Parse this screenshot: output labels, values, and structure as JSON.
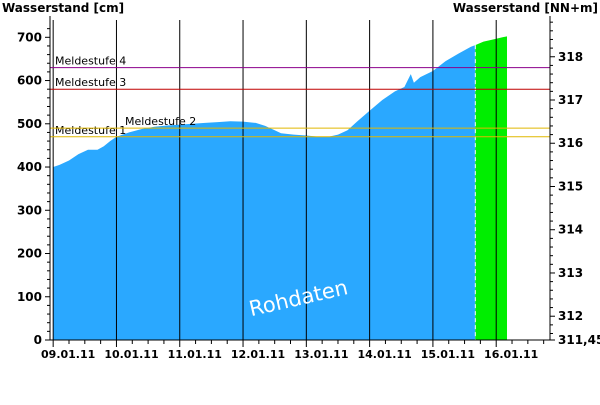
{
  "chart_data": {
    "type": "area",
    "ylabel_left": "Wasserstand [cm]",
    "ylabel_right": "Wasserstand [NN+m]",
    "watermark": "Rohdaten",
    "ylim": [
      0,
      740
    ],
    "yticks": [
      0,
      100,
      200,
      300,
      400,
      500,
      600,
      700
    ],
    "right_ticks": [
      {
        "label": "311,45",
        "cm": 0
      },
      {
        "label": "312",
        "cm": 55
      },
      {
        "label": "313",
        "cm": 155
      },
      {
        "label": "314",
        "cm": 255
      },
      {
        "label": "315",
        "cm": 355
      },
      {
        "label": "316",
        "cm": 455
      },
      {
        "label": "317",
        "cm": 555
      },
      {
        "label": "318",
        "cm": 655
      }
    ],
    "xlim_days": [
      -0.05,
      7.85
    ],
    "x_ticks": [
      {
        "label": "09.01.11",
        "day": 0
      },
      {
        "label": "10.01.11",
        "day": 1
      },
      {
        "label": "11.01.11",
        "day": 2
      },
      {
        "label": "12.01.11",
        "day": 3
      },
      {
        "label": "13.01.11",
        "day": 4
      },
      {
        "label": "14.01.11",
        "day": 5
      },
      {
        "label": "15.01.11",
        "day": 6
      },
      {
        "label": "16.01.11",
        "day": 7
      }
    ],
    "thresholds": [
      {
        "name": "Meldestufe 1",
        "value": 470,
        "color": "#e0b800"
      },
      {
        "name": "Meldestufe 2",
        "value": 490,
        "color": "#e0b800"
      },
      {
        "name": "Meldestufe 3",
        "value": 580,
        "color": "#c00000"
      },
      {
        "name": "Meldestufe 4",
        "value": 630,
        "color": "#8b008b"
      }
    ],
    "series": [
      {
        "color": "#2aa8ff",
        "points": [
          [
            0,
            400
          ],
          [
            0.1,
            405
          ],
          [
            0.25,
            415
          ],
          [
            0.4,
            430
          ],
          [
            0.55,
            440
          ],
          [
            0.7,
            440
          ],
          [
            0.8,
            448
          ],
          [
            0.9,
            460
          ],
          [
            1.0,
            470
          ],
          [
            1.2,
            480
          ],
          [
            1.4,
            488
          ],
          [
            1.6,
            493
          ],
          [
            1.8,
            496
          ],
          [
            2.0,
            498
          ],
          [
            2.2,
            500
          ],
          [
            2.4,
            502
          ],
          [
            2.6,
            504
          ],
          [
            2.8,
            506
          ],
          [
            3.0,
            505
          ],
          [
            3.2,
            502
          ],
          [
            3.35,
            495
          ],
          [
            3.5,
            485
          ],
          [
            3.6,
            478
          ],
          [
            3.8,
            475
          ],
          [
            4.0,
            473
          ],
          [
            4.2,
            470
          ],
          [
            4.35,
            470
          ],
          [
            4.5,
            475
          ],
          [
            4.65,
            485
          ],
          [
            4.8,
            505
          ],
          [
            5.0,
            530
          ],
          [
            5.2,
            555
          ],
          [
            5.4,
            575
          ],
          [
            5.55,
            585
          ],
          [
            5.6,
            600
          ],
          [
            5.65,
            615
          ],
          [
            5.7,
            595
          ],
          [
            5.8,
            608
          ],
          [
            6.0,
            622
          ],
          [
            6.2,
            645
          ],
          [
            6.4,
            662
          ],
          [
            6.6,
            678
          ],
          [
            6.67,
            682
          ]
        ]
      },
      {
        "color": "#00ee00",
        "points": [
          [
            6.67,
            682
          ],
          [
            6.8,
            690
          ],
          [
            6.95,
            695
          ],
          [
            7.1,
            700
          ],
          [
            7.17,
            702
          ]
        ]
      }
    ],
    "forecast_start_day": 6.67
  }
}
